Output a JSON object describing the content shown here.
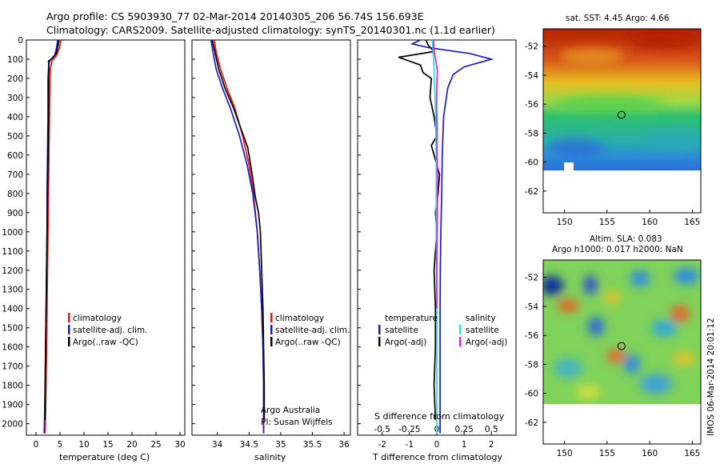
{
  "title_line1": "Argo profile: CS 5903930_77 02-Mar-2014 20140305_206 56.74S 156.693E",
  "title_line2": "Climatology: CARS2009. Satellite-adjusted climatology: synTS_20140301.nc (1.1d earlier)",
  "colors": {
    "climatology": "#ee1111",
    "satellite": "#1a1acc",
    "argo": "#000000",
    "sat_salinity": "#33dddd",
    "argo_salinity": "#dd22dd"
  },
  "chart_data": [
    {
      "type": "line",
      "id": "temperature",
      "xlabel": "temperature (deg C)",
      "xlim": [
        -2,
        31
      ],
      "xticks": [
        0,
        5,
        10,
        15,
        20,
        25,
        30
      ],
      "ylim": [
        2060,
        0
      ],
      "yticks": [
        0,
        100,
        200,
        300,
        400,
        500,
        600,
        700,
        800,
        900,
        1000,
        1100,
        1200,
        1300,
        1400,
        1500,
        1600,
        1700,
        1800,
        1900,
        2000
      ],
      "legend": [
        "climatology",
        "satellite-adj. clim.",
        "Argo(..raw -QC)"
      ],
      "series": [
        {
          "name": "climatology",
          "color": "#ee1111",
          "points": [
            [
              5.2,
              0
            ],
            [
              4.9,
              40
            ],
            [
              4.3,
              80
            ],
            [
              3.3,
              110
            ],
            [
              3.0,
              150
            ],
            [
              2.9,
              200
            ],
            [
              2.8,
              400
            ],
            [
              2.7,
              600
            ],
            [
              2.6,
              800
            ],
            [
              2.5,
              1000
            ],
            [
              2.4,
              1200
            ],
            [
              2.3,
              1400
            ],
            [
              2.2,
              1600
            ],
            [
              2.1,
              1800
            ],
            [
              2.0,
              1950
            ],
            [
              1.9,
              2050
            ]
          ]
        },
        {
          "name": "satellite-adj. clim.",
          "color": "#1a1acc",
          "points": [
            [
              4.5,
              0
            ],
            [
              4.3,
              40
            ],
            [
              3.9,
              80
            ],
            [
              2.8,
              110
            ],
            [
              2.6,
              150
            ],
            [
              2.5,
              200
            ],
            [
              2.5,
              400
            ],
            [
              2.4,
              600
            ],
            [
              2.3,
              800
            ],
            [
              2.3,
              1000
            ],
            [
              2.2,
              1200
            ],
            [
              2.1,
              1400
            ],
            [
              2.0,
              1600
            ],
            [
              1.9,
              1800
            ],
            [
              1.8,
              1950
            ],
            [
              1.7,
              2050
            ]
          ]
        },
        {
          "name": "Argo(..raw -QC)",
          "color": "#000000",
          "points": [
            [
              4.8,
              0
            ],
            [
              4.6,
              30
            ],
            [
              4.2,
              70
            ],
            [
              3.4,
              95
            ],
            [
              2.6,
              110
            ],
            [
              2.7,
              140
            ],
            [
              2.6,
              200
            ],
            [
              2.6,
              400
            ],
            [
              2.5,
              600
            ],
            [
              2.4,
              800
            ],
            [
              2.3,
              1000
            ],
            [
              2.2,
              1200
            ],
            [
              2.1,
              1400
            ],
            [
              2.0,
              1600
            ],
            [
              1.9,
              1800
            ],
            [
              1.85,
              1980
            ]
          ]
        }
      ]
    },
    {
      "type": "line",
      "id": "salinity",
      "xlabel": "salinity",
      "xlim": [
        33.6,
        36.1
      ],
      "xticks": [
        34,
        34.5,
        35,
        35.5,
        36
      ],
      "xticklabels": [
        "34",
        "34.5",
        "35",
        "35.5",
        "36"
      ],
      "ylim": [
        2060,
        0
      ],
      "legend": [
        "climatology",
        "satellite-adj. clim.",
        "Argo(..raw -QC)"
      ],
      "annotation": [
        "Argo Australia",
        "PI: Susan Wijffels"
      ],
      "series": [
        {
          "name": "climatology",
          "color": "#ee1111",
          "points": [
            [
              33.95,
              0
            ],
            [
              33.98,
              60
            ],
            [
              34.05,
              150
            ],
            [
              34.15,
              250
            ],
            [
              34.27,
              350
            ],
            [
              34.4,
              500
            ],
            [
              34.5,
              650
            ],
            [
              34.57,
              800
            ],
            [
              34.63,
              1000
            ],
            [
              34.67,
              1200
            ],
            [
              34.7,
              1400
            ],
            [
              34.72,
              1600
            ],
            [
              34.73,
              1800
            ],
            [
              34.73,
              2050
            ]
          ]
        },
        {
          "name": "satellite-adj. clim.",
          "color": "#1a1acc",
          "points": [
            [
              33.9,
              0
            ],
            [
              33.93,
              60
            ],
            [
              33.98,
              150
            ],
            [
              34.08,
              250
            ],
            [
              34.2,
              350
            ],
            [
              34.35,
              500
            ],
            [
              34.47,
              650
            ],
            [
              34.56,
              800
            ],
            [
              34.63,
              1000
            ],
            [
              34.67,
              1200
            ],
            [
              34.7,
              1400
            ],
            [
              34.72,
              1600
            ],
            [
              34.73,
              1800
            ],
            [
              34.73,
              2050
            ]
          ]
        },
        {
          "name": "Argo(..raw -QC)",
          "color": "#000000",
          "points": [
            [
              33.92,
              0
            ],
            [
              33.96,
              60
            ],
            [
              34.02,
              150
            ],
            [
              34.12,
              250
            ],
            [
              34.25,
              350
            ],
            [
              34.38,
              470
            ],
            [
              34.48,
              560
            ],
            [
              34.55,
              700
            ],
            [
              34.6,
              820
            ],
            [
              34.65,
              900
            ],
            [
              34.68,
              1000
            ],
            [
              34.7,
              1200
            ],
            [
              34.72,
              1400
            ],
            [
              34.73,
              1600
            ],
            [
              34.74,
              1800
            ],
            [
              34.74,
              1980
            ]
          ]
        }
      ]
    },
    {
      "type": "line",
      "id": "difference",
      "xlabel": "T difference from climatology",
      "xlabel_top": "S difference from climatology",
      "xlim": [
        -2.9,
        2.9
      ],
      "xticks": [
        -2,
        -1,
        0,
        1,
        2
      ],
      "s_ticks": [
        -0.5,
        -0.25,
        0,
        0.25,
        0.5
      ],
      "s_ticklabels": [
        "-0.5",
        "-0.25",
        "0",
        "0.25",
        "0.5"
      ],
      "ylim": [
        2060,
        0
      ],
      "legend_headers": [
        "temperature",
        "salinity"
      ],
      "legend": [
        "satellite",
        "Argo(-adj)",
        "satellite",
        "Argo(-adj)"
      ],
      "series": [
        {
          "name": "satellite",
          "color": "#1a1acc",
          "points": [
            [
              -0.6,
              0
            ],
            [
              -0.9,
              20
            ],
            [
              -0.3,
              40
            ],
            [
              1.2,
              70
            ],
            [
              2.0,
              100
            ],
            [
              1.0,
              140
            ],
            [
              0.6,
              180
            ],
            [
              0.4,
              250
            ],
            [
              0.25,
              400
            ],
            [
              0.2,
              600
            ],
            [
              0.18,
              800
            ],
            [
              0.15,
              1000
            ],
            [
              0.13,
              1200
            ],
            [
              0.12,
              1400
            ],
            [
              0.12,
              1600
            ],
            [
              0.12,
              1800
            ],
            [
              0.12,
              2050
            ]
          ]
        },
        {
          "name": "Argo(-adj)",
          "color": "#000000",
          "points": [
            [
              -0.4,
              0
            ],
            [
              -0.3,
              30
            ],
            [
              -0.1,
              60
            ],
            [
              -1.4,
              90
            ],
            [
              -1.0,
              110
            ],
            [
              -0.6,
              130
            ],
            [
              -0.5,
              170
            ],
            [
              -0.2,
              200
            ],
            [
              -0.25,
              300
            ],
            [
              -0.1,
              400
            ],
            [
              0.0,
              500
            ],
            [
              -0.2,
              550
            ],
            [
              0.1,
              700
            ],
            [
              0.05,
              800
            ],
            [
              -0.05,
              900
            ],
            [
              0.0,
              1000
            ],
            [
              -0.1,
              1200
            ],
            [
              -0.05,
              1400
            ],
            [
              -0.05,
              1600
            ],
            [
              -0.1,
              1800
            ],
            [
              -0.05,
              1980
            ]
          ]
        },
        {
          "name": "satellite",
          "color": "#33dddd",
          "points": [
            [
              -0.16,
              0
            ],
            [
              -0.14,
              50
            ],
            [
              -0.12,
              100
            ],
            [
              -0.1,
              150
            ],
            [
              -0.08,
              250
            ],
            [
              -0.05,
              350
            ],
            [
              -0.03,
              500
            ],
            [
              -0.02,
              650
            ],
            [
              -0.02,
              800
            ],
            [
              -0.02,
              1000
            ],
            [
              -0.01,
              1200
            ],
            [
              0.0,
              1400
            ],
            [
              0.0,
              1600
            ],
            [
              0.0,
              1800
            ],
            [
              0.0,
              2050
            ]
          ]
        },
        {
          "name": "Argo(-adj)",
          "color": "#dd22dd",
          "points": [
            [
              -0.12,
              0
            ],
            [
              -0.11,
              40
            ],
            [
              -0.07,
              80
            ],
            [
              -0.02,
              120
            ],
            [
              0.02,
              160
            ],
            [
              0.0,
              250
            ],
            [
              -0.01,
              350
            ],
            [
              0.01,
              460
            ],
            [
              0.0,
              550
            ],
            [
              0.03,
              700
            ],
            [
              0.02,
              900
            ],
            [
              0.01,
              1000
            ],
            [
              0.0,
              1200
            ],
            [
              0.0,
              1400
            ]
          ]
        }
      ]
    },
    {
      "type": "heatmap",
      "id": "sst-map",
      "title": "sat. SST: 4.45 Argo: 4.66",
      "xticks": [
        150,
        155,
        160,
        165
      ],
      "yticks": [
        -52,
        -54,
        -56,
        -58,
        -60,
        -62
      ],
      "xlim": [
        147.5,
        166
      ],
      "ylim": [
        -63.5,
        -50.8
      ],
      "marker": {
        "lon": 156.69,
        "lat": -56.74
      }
    },
    {
      "type": "heatmap",
      "id": "sla-map",
      "title_line1": "Altim. SLA: 0.083",
      "title_line2": "Argo h1000: 0.017 h2000: NaN",
      "xticks": [
        150,
        155,
        160,
        165
      ],
      "yticks": [
        -52,
        -54,
        -56,
        -58,
        -60,
        -62
      ],
      "xlim": [
        147.5,
        166
      ],
      "ylim": [
        -63.5,
        -50.8
      ],
      "marker": {
        "lon": 156.69,
        "lat": -56.74
      }
    }
  ],
  "footer_stamp": "IMOS 06-Mar-2014 20:01:12"
}
